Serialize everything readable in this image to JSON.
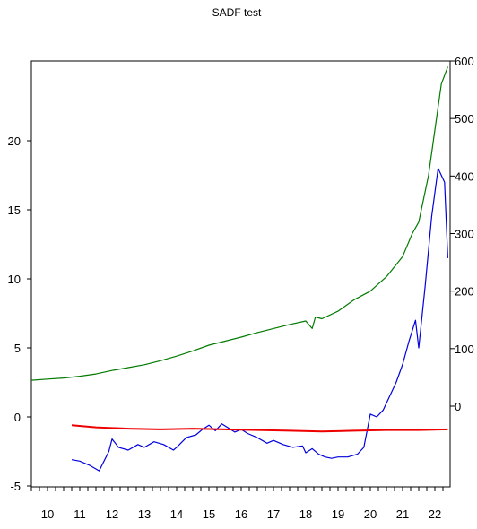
{
  "chart_data": {
    "type": "line",
    "title": "SADF test",
    "x_ticks": [
      "10",
      "11",
      "12",
      "13",
      "14",
      "15",
      "16",
      "17",
      "18",
      "19",
      "20",
      "21",
      "22"
    ],
    "left_axis": {
      "ylim": [
        -5,
        25
      ],
      "ticks": [
        "-5",
        "0",
        "5",
        "10",
        "15",
        "20"
      ]
    },
    "right_axis": {
      "ylim": [
        -100,
        600
      ],
      "ticks": [
        "0",
        "100",
        "200",
        "300",
        "400",
        "500",
        "600"
      ]
    },
    "grid": false,
    "series": [
      {
        "axis": "right",
        "color": "#007a00",
        "x": [
          9.5,
          10.0,
          10.5,
          11.0,
          11.5,
          12.0,
          12.5,
          13.0,
          13.5,
          14.0,
          14.5,
          15.0,
          15.5,
          16.0,
          16.5,
          17.0,
          17.5,
          18.0,
          18.2,
          18.3,
          18.5,
          19.0,
          19.5,
          20.0,
          20.5,
          21.0,
          21.3,
          21.5,
          21.8,
          22.0,
          22.2,
          22.4
        ],
        "values": [
          45,
          47,
          49,
          52,
          56,
          62,
          67,
          72,
          79,
          87,
          96,
          106,
          113,
          120,
          128,
          135,
          142,
          148,
          135,
          155,
          152,
          165,
          185,
          200,
          225,
          260,
          300,
          320,
          400,
          480,
          560,
          590
        ]
      },
      {
        "axis": "left",
        "color": "#0000dd",
        "x": [
          10.75,
          11.0,
          11.3,
          11.6,
          11.9,
          12.0,
          12.2,
          12.5,
          12.8,
          13.0,
          13.3,
          13.6,
          13.9,
          14.0,
          14.3,
          14.6,
          14.8,
          15.0,
          15.2,
          15.4,
          15.6,
          15.8,
          16.0,
          16.2,
          16.5,
          16.8,
          17.0,
          17.3,
          17.6,
          17.9,
          18.0,
          18.2,
          18.4,
          18.6,
          18.8,
          19.0,
          19.3,
          19.6,
          19.8,
          20.0,
          20.2,
          20.4,
          20.6,
          20.8,
          21.0,
          21.2,
          21.4,
          21.5,
          21.7,
          21.9,
          22.1,
          22.3,
          22.4
        ],
        "values": [
          -3.1,
          -3.2,
          -3.5,
          -3.9,
          -2.5,
          -1.6,
          -2.2,
          -2.4,
          -2.0,
          -2.2,
          -1.8,
          -2.0,
          -2.4,
          -2.2,
          -1.5,
          -1.3,
          -0.9,
          -0.6,
          -1.0,
          -0.5,
          -0.8,
          -1.1,
          -0.9,
          -1.2,
          -1.5,
          -1.9,
          -1.7,
          -2.0,
          -2.2,
          -2.1,
          -2.6,
          -2.3,
          -2.7,
          -2.9,
          -3.0,
          -2.9,
          -2.9,
          -2.7,
          -2.2,
          0.2,
          0.0,
          0.5,
          1.5,
          2.5,
          3.8,
          5.5,
          7.0,
          5.0,
          9.5,
          14.5,
          18.0,
          17.0,
          11.5
        ]
      },
      {
        "axis": "left",
        "color": "#ee0000",
        "x": [
          10.75,
          11.5,
          12.5,
          13.5,
          14.5,
          15.5,
          16.5,
          17.5,
          18.5,
          19.5,
          20.5,
          21.5,
          22.4
        ],
        "values": [
          -0.6,
          -0.75,
          -0.85,
          -0.9,
          -0.85,
          -0.9,
          -0.95,
          -1.0,
          -1.05,
          -1.0,
          -0.95,
          -0.95,
          -0.9
        ]
      }
    ]
  }
}
